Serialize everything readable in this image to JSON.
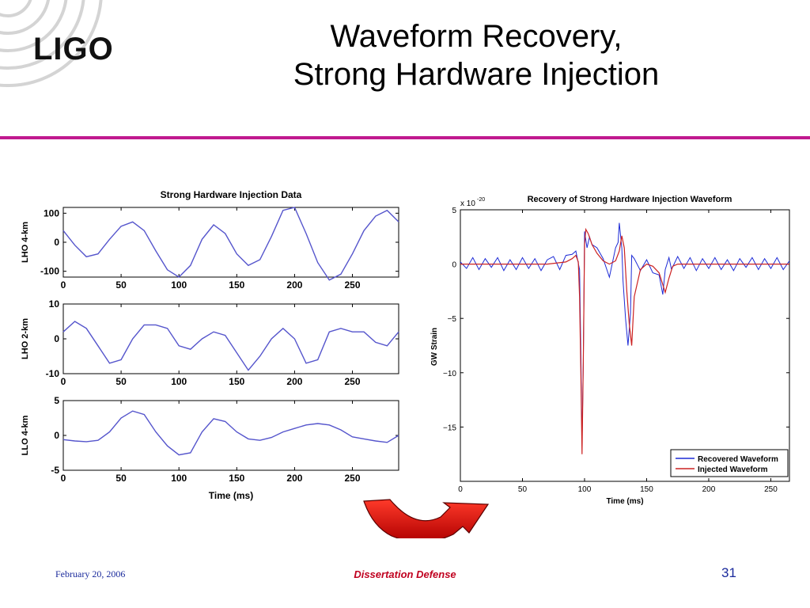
{
  "slide": {
    "logo_text": "LIGO",
    "title_line1": "Waveform Recovery,",
    "title_line2": "Strong Hardware Injection",
    "accent_color": "#c0198f"
  },
  "footer": {
    "date": "February 20, 2006",
    "center": "Dissertation Defense",
    "page": "31"
  },
  "chart_data": [
    {
      "type": "line",
      "title": "Strong Hardware Injection Data",
      "xlabel": "Time (ms)",
      "xlim": [
        0,
        290
      ],
      "xticks": [
        0,
        50,
        100,
        150,
        200,
        250
      ],
      "line_color": "#5555cc",
      "panels": [
        {
          "ylabel": "LHO 4-km",
          "ylim": [
            -120,
            120
          ],
          "yticks": [
            100,
            0,
            -100
          ],
          "ytick_labels": [
            "100",
            "0",
            "-100"
          ],
          "x": [
            0,
            10,
            20,
            30,
            40,
            50,
            60,
            70,
            80,
            90,
            100,
            110,
            120,
            130,
            140,
            150,
            160,
            170,
            180,
            190,
            200,
            210,
            220,
            230,
            240,
            250,
            260,
            270,
            280,
            290
          ],
          "y": [
            40,
            -10,
            -50,
            -40,
            10,
            55,
            70,
            40,
            -30,
            -95,
            -120,
            -80,
            10,
            60,
            30,
            -40,
            -80,
            -60,
            20,
            110,
            120,
            30,
            -70,
            -130,
            -110,
            -40,
            40,
            90,
            110,
            70
          ]
        },
        {
          "ylabel": "LHO 2-km",
          "ylim": [
            -10,
            10
          ],
          "yticks": [
            10,
            0,
            -10
          ],
          "ytick_labels": [
            "10",
            "0",
            "-10"
          ],
          "x": [
            0,
            10,
            20,
            30,
            40,
            50,
            60,
            70,
            80,
            90,
            100,
            110,
            120,
            130,
            140,
            150,
            160,
            170,
            180,
            190,
            200,
            210,
            220,
            230,
            240,
            250,
            260,
            270,
            280,
            290
          ],
          "y": [
            2,
            5,
            3,
            -2,
            -7,
            -6,
            0,
            4,
            4,
            3,
            -2,
            -3,
            0,
            2,
            1,
            -4,
            -9,
            -5,
            0,
            3,
            0,
            -7,
            -6,
            2,
            3,
            2,
            2,
            -1,
            -2,
            2
          ]
        },
        {
          "ylabel": "LLO 4-km",
          "ylim": [
            -5,
            5
          ],
          "yticks": [
            5,
            0,
            -5
          ],
          "ytick_labels": [
            "5",
            "0",
            "-5"
          ],
          "x": [
            0,
            10,
            20,
            30,
            40,
            50,
            60,
            70,
            80,
            90,
            100,
            110,
            120,
            130,
            140,
            150,
            160,
            170,
            180,
            190,
            200,
            210,
            220,
            230,
            240,
            250,
            260,
            270,
            280,
            290
          ],
          "y": [
            -0.6,
            -0.8,
            -0.9,
            -0.7,
            0.5,
            2.5,
            3.5,
            3,
            0.5,
            -1.5,
            -2.8,
            -2.5,
            0.5,
            2.4,
            2,
            0.5,
            -0.5,
            -0.7,
            -0.3,
            0.5,
            1,
            1.5,
            1.7,
            1.5,
            0.8,
            -0.2,
            -0.5,
            -0.8,
            -1,
            0
          ]
        }
      ]
    },
    {
      "type": "line",
      "title": "Recovery of Strong Hardware Injection Waveform",
      "xlabel": "Time (ms)",
      "ylabel": "GW Strain",
      "multiplier_label": "x 10",
      "multiplier_exponent": "-20",
      "xlim": [
        0,
        265
      ],
      "ylim": [
        -20,
        5
      ],
      "xticks": [
        0,
        50,
        100,
        150,
        200,
        250
      ],
      "yticks": [
        5,
        0,
        -5,
        -10,
        -15
      ],
      "ytick_labels": [
        "5",
        "0",
        "−5",
        "−10",
        "−15"
      ],
      "legend_position": "bottom-right",
      "series": [
        {
          "name": "Recovered Waveform",
          "color": "#1d2bd6",
          "x": [
            0,
            5,
            10,
            15,
            20,
            25,
            30,
            35,
            40,
            45,
            50,
            55,
            60,
            65,
            70,
            75,
            80,
            85,
            90,
            93,
            96,
            97,
            98,
            99,
            100,
            102,
            104,
            106,
            110,
            115,
            120,
            125,
            127,
            128,
            130,
            131,
            133,
            135,
            137,
            138,
            140,
            145,
            150,
            155,
            160,
            163,
            165,
            168,
            170,
            175,
            180,
            185,
            190,
            195,
            200,
            205,
            210,
            215,
            220,
            225,
            230,
            235,
            240,
            245,
            250,
            255,
            260,
            265
          ],
          "y": [
            0.2,
            -0.4,
            0.6,
            -0.5,
            0.5,
            -0.3,
            0.6,
            -0.6,
            0.4,
            -0.5,
            0.6,
            -0.4,
            0.5,
            -0.6,
            0.4,
            0.7,
            -0.5,
            0.8,
            0.9,
            1.2,
            -0.5,
            -8,
            -16.5,
            -9,
            3,
            1.5,
            2.5,
            1.8,
            1.5,
            0.5,
            -1.2,
            1.5,
            2,
            3.8,
            1.5,
            -1.5,
            -5,
            -7.5,
            -4.5,
            0.8,
            0.5,
            -0.6,
            0.4,
            -0.8,
            -1,
            -2.8,
            -0.5,
            0.6,
            -0.5,
            0.7,
            -0.4,
            0.6,
            -0.6,
            0.5,
            -0.4,
            0.6,
            -0.5,
            0.4,
            -0.6,
            0.5,
            -0.3,
            0.6,
            -0.5,
            0.5,
            -0.4,
            0.6,
            -0.5,
            0.3
          ]
        },
        {
          "name": "Injected Waveform",
          "color": "#cc2222",
          "x": [
            0,
            40,
            70,
            85,
            90,
            93,
            95,
            96,
            97,
            98,
            99,
            100,
            101,
            103,
            106,
            110,
            115,
            120,
            125,
            128,
            130,
            132,
            134,
            136,
            138,
            140,
            145,
            150,
            155,
            160,
            165,
            168,
            171,
            175,
            180,
            200,
            230,
            265
          ],
          "y": [
            0,
            0,
            0,
            0.2,
            0.5,
            0.8,
            0.2,
            -3,
            -10,
            -17.5,
            -9,
            1.8,
            3.2,
            2.8,
            1.8,
            1,
            0.3,
            0,
            0.3,
            1.2,
            2.6,
            1.5,
            -2.5,
            -5.5,
            -7.5,
            -3,
            -0.5,
            0,
            -0.2,
            -0.8,
            -2.6,
            -1.3,
            -0.2,
            0,
            0,
            0,
            0,
            0
          ]
        }
      ]
    }
  ]
}
